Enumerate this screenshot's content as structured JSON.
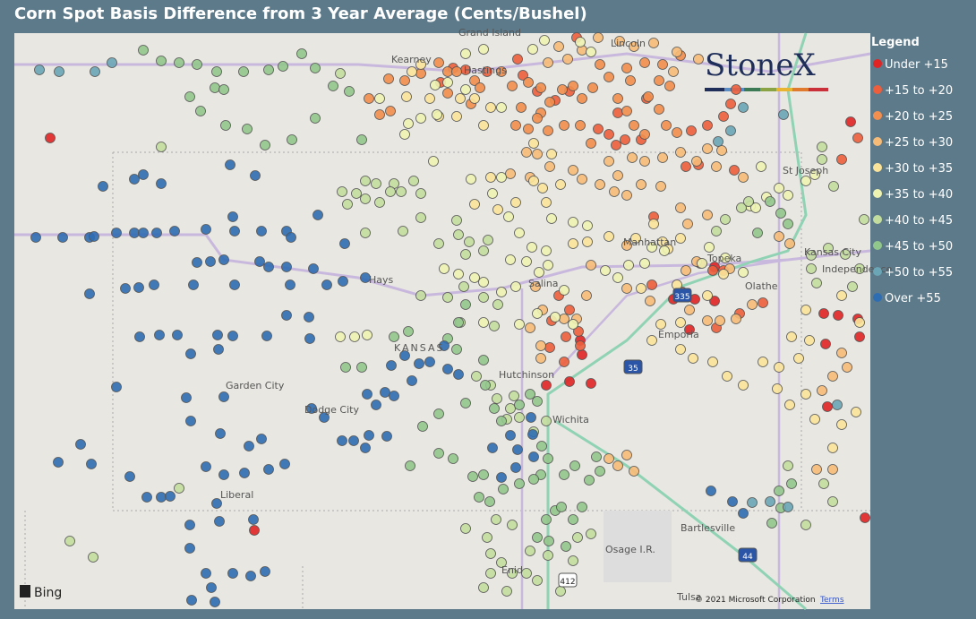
{
  "header": {
    "title": "Corn Spot Basis Difference from 3 Year Average (Cents/Bushel)"
  },
  "legend": {
    "title": "Legend",
    "items": [
      {
        "label": "Under +15",
        "color": "#e02424"
      },
      {
        "label": "+15 to +20",
        "color": "#ec5e3c"
      },
      {
        "label": "+20 to +25",
        "color": "#f28e4e"
      },
      {
        "label": "+25 to +30",
        "color": "#f7bb78"
      },
      {
        "label": "+30 to +35",
        "color": "#fbe49a"
      },
      {
        "label": "+35 to +40",
        "color": "#eef3b2"
      },
      {
        "label": "+40 to +45",
        "color": "#c3dd9e"
      },
      {
        "label": "+45 to +50",
        "color": "#92c78c"
      },
      {
        "label": "+50 to +55",
        "color": "#6aa6b6"
      },
      {
        "label": "Over +55",
        "color": "#2f6db3"
      }
    ]
  },
  "logo": "StoneX",
  "map": {
    "labels": [
      "Grand Island",
      "Kearney",
      "Hastings",
      "Lincoln",
      "St Joseph",
      "Manhattan",
      "Topeka",
      "Kansas City",
      "Independence",
      "Olathe",
      "Hays",
      "Salina",
      "KANSAS",
      "Emporia",
      "Hutchinson",
      "Wichita",
      "Garden City",
      "Dodge City",
      "Liberal",
      "Bartlesville",
      "Osage I.R.",
      "Enid",
      "Tulsa"
    ],
    "shields": [
      "335",
      "35",
      "44",
      "412"
    ],
    "attribution": "© 2021 Microsoft Corporation",
    "terms": "Terms",
    "provider": "Bing"
  }
}
